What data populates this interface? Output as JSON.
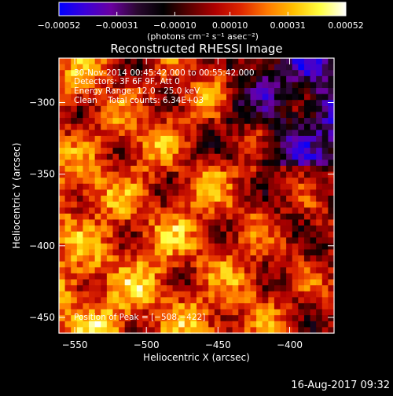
{
  "chart_data": {
    "type": "heatmap",
    "title": "Reconstructed RHESSI Image",
    "xlabel": "Heliocentric X (arcsec)",
    "ylabel": "Heliocentric Y (arcsec)",
    "xlim": [
      -561,
      -369
    ],
    "ylim": [
      -461,
      -269
    ],
    "x_ticks": [
      -550,
      -500,
      -450,
      -400
    ],
    "y_ticks": [
      -300,
      -350,
      -400,
      -450
    ],
    "x_tick_labels": [
      "−550",
      "−500",
      "−450",
      "−400"
    ],
    "y_tick_labels": [
      "−300",
      "−350",
      "−400",
      "−450"
    ],
    "colorbar": {
      "range": [
        -0.00052,
        0.00052
      ],
      "tick_values": [
        -0.00052,
        -0.00031,
        -0.0001,
        0.0001,
        0.00031,
        0.00052
      ],
      "tick_labels": [
        "−0.00052",
        "−0.00031",
        "−0.00010",
        "0.00010",
        "0.00031",
        "0.00052"
      ],
      "units": "(photons cm⁻² s⁻¹ asec⁻²)",
      "colors": [
        "#0000ff",
        "#3c00d8",
        "#6a00a0",
        "#2a0830",
        "#000000",
        "#5a0000",
        "#b00000",
        "#e02800",
        "#ff7a00",
        "#ffc000",
        "#ffff40",
        "#ffffff"
      ]
    },
    "peak": {
      "x": -508,
      "y": -422
    },
    "grid_size": 46
  },
  "info": {
    "time_range": "30-Nov-2014 00:45:42.000 to 00:55:42.000",
    "detectors": "Detectors: 3F 6F 9F, Att 0",
    "energy": "Energy Range: 12.0 - 25.0 keV",
    "clean": "Clean    Total counts: 6.34E+03",
    "peak_label": "Position of Peak = [−508,−422]"
  },
  "footer": {
    "date": "16-Aug-2017 09:32"
  }
}
